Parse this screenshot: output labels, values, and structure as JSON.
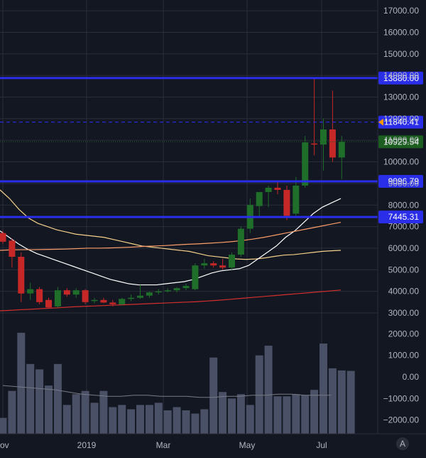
{
  "chart_data": {
    "type": "candlestick",
    "price_axis_ticks": [
      17000,
      16000,
      15000,
      14000,
      13000,
      12000,
      11000,
      10000,
      9000,
      8000,
      7000,
      6000,
      5000,
      4000,
      3000
    ],
    "volume_axis_ticks": [
      2000,
      1000,
      0,
      -1000,
      -2000
    ],
    "price_axis_labels": [
      "17000.00",
      "16000.00",
      "15000.00",
      "14000.00",
      "13000.00",
      "12000.00",
      "11000.00",
      "10000.00",
      "9000.00",
      "8000.00",
      "7000.00",
      "6000.00",
      "5000.00",
      "4000.00",
      "3000.00"
    ],
    "volume_axis_labels": [
      "2000.00",
      "1000.00",
      "0.00",
      "−1000.00",
      "−2000.00"
    ],
    "time_axis_labels": [
      "ov",
      "2019",
      "Mar",
      "May",
      "Jul"
    ],
    "price_ylim": [
      2400,
      17500
    ],
    "volume_ylim": [
      -2700,
      2100
    ],
    "horizontal_levels": [
      {
        "value": 13880,
        "label": "13880.00",
        "color": "#2a2ee8",
        "style": "solid"
      },
      {
        "value": 11840.41,
        "label": "11840.41",
        "color": "#2a2ee8",
        "style": "dashed"
      },
      {
        "value": 9096.79,
        "label": "9096.79",
        "color": "#2a2ee8",
        "style": "solid"
      },
      {
        "value": 7445.31,
        "label": "7445.31",
        "color": "#2a2ee8",
        "style": "solid"
      }
    ],
    "last_price": {
      "value": 10929.54,
      "label": "10929.54",
      "color": "#1b5e20"
    },
    "candles": [
      {
        "open": 6700,
        "high": 6800,
        "low": 6200,
        "close": 6300
      },
      {
        "open": 6350,
        "high": 6450,
        "low": 5100,
        "close": 5600
      },
      {
        "open": 5600,
        "high": 5800,
        "low": 3500,
        "close": 3900
      },
      {
        "open": 3900,
        "high": 4400,
        "low": 3600,
        "close": 4100
      },
      {
        "open": 4100,
        "high": 4200,
        "low": 3400,
        "close": 3500
      },
      {
        "open": 3600,
        "high": 3700,
        "low": 3200,
        "close": 3250
      },
      {
        "open": 3300,
        "high": 4200,
        "low": 3250,
        "close": 4050
      },
      {
        "open": 4050,
        "high": 4150,
        "low": 3750,
        "close": 3850
      },
      {
        "open": 3850,
        "high": 4150,
        "low": 3700,
        "close": 4050
      },
      {
        "open": 4050,
        "high": 4100,
        "low": 3400,
        "close": 3500
      },
      {
        "open": 3550,
        "high": 3700,
        "low": 3450,
        "close": 3600
      },
      {
        "open": 3600,
        "high": 3700,
        "low": 3450,
        "close": 3480
      },
      {
        "open": 3480,
        "high": 3600,
        "low": 3300,
        "close": 3400
      },
      {
        "open": 3400,
        "high": 3700,
        "low": 3350,
        "close": 3650
      },
      {
        "open": 3650,
        "high": 3850,
        "low": 3550,
        "close": 3700
      },
      {
        "open": 3700,
        "high": 4300,
        "low": 3650,
        "close": 3800
      },
      {
        "open": 3800,
        "high": 4000,
        "low": 3700,
        "close": 3950
      },
      {
        "open": 3950,
        "high": 4100,
        "low": 3850,
        "close": 4000
      },
      {
        "open": 4000,
        "high": 4150,
        "low": 3950,
        "close": 4050
      },
      {
        "open": 4050,
        "high": 4200,
        "low": 3950,
        "close": 4150
      },
      {
        "open": 4150,
        "high": 4350,
        "low": 4050,
        "close": 4250
      },
      {
        "open": 4100,
        "high": 5300,
        "low": 4050,
        "close": 5200
      },
      {
        "open": 5200,
        "high": 5500,
        "low": 5050,
        "close": 5300
      },
      {
        "open": 5300,
        "high": 5400,
        "low": 5100,
        "close": 5200
      },
      {
        "open": 5200,
        "high": 5500,
        "low": 5000,
        "close": 5100
      },
      {
        "open": 5100,
        "high": 5800,
        "low": 5000,
        "close": 5700
      },
      {
        "open": 5700,
        "high": 7000,
        "low": 5600,
        "close": 6900
      },
      {
        "open": 6900,
        "high": 8300,
        "low": 6700,
        "close": 8000
      },
      {
        "open": 7950,
        "high": 8600,
        "low": 7400,
        "close": 8600
      },
      {
        "open": 8600,
        "high": 8900,
        "low": 7900,
        "close": 8800
      },
      {
        "open": 8800,
        "high": 9100,
        "low": 8500,
        "close": 8700
      },
      {
        "open": 8700,
        "high": 8900,
        "low": 7300,
        "close": 7500
      },
      {
        "open": 7600,
        "high": 9300,
        "low": 7500,
        "close": 8900
      },
      {
        "open": 8900,
        "high": 11200,
        "low": 8800,
        "close": 10900
      },
      {
        "open": 10850,
        "high": 13900,
        "low": 10300,
        "close": 10800
      },
      {
        "open": 10800,
        "high": 12000,
        "low": 9600,
        "close": 11500
      },
      {
        "open": 11500,
        "high": 13300,
        "low": 10000,
        "close": 10200
      },
      {
        "open": 10200,
        "high": 11200,
        "low": 9200,
        "close": 10929.54
      }
    ],
    "volume": [
      -1900,
      -650,
      2050,
      600,
      350,
      -400,
      600,
      -1300,
      -800,
      -650,
      -1200,
      -650,
      -1400,
      -1300,
      -1500,
      -1300,
      -1300,
      -1200,
      -1550,
      -1400,
      -1550,
      -1700,
      -1500,
      900,
      -700,
      -1000,
      -800,
      -1300,
      1000,
      1450,
      -900,
      -900,
      -800,
      -850,
      -600,
      1550,
      400,
      300,
      280
    ],
    "moving_averages": [
      {
        "color": "#f5d08a",
        "role": "upper-ma",
        "values": [
          8700,
          8300,
          7800,
          7400,
          7150,
          7000,
          6850,
          6750,
          6650,
          6600,
          6550,
          6500,
          6400,
          6300,
          6200,
          6100,
          6050,
          6000,
          5950,
          5900,
          5850,
          5750,
          5650,
          5600,
          5550,
          5500,
          5480,
          5500,
          5550,
          5620,
          5680,
          5700,
          5750,
          5800,
          5850,
          5880,
          5900
        ]
      },
      {
        "color": "#ffffff",
        "role": "fast-ma",
        "values": [
          6800,
          6500,
          6200,
          5950,
          5750,
          5600,
          5450,
          5300,
          5150,
          5000,
          4850,
          4700,
          4550,
          4450,
          4350,
          4300,
          4300,
          4300,
          4350,
          4400,
          4450,
          4550,
          4700,
          4850,
          4950,
          5000,
          5050,
          5200,
          5500,
          5800,
          6100,
          6500,
          6800,
          7200,
          7600,
          7900,
          8100,
          8300
        ]
      },
      {
        "color": "#ff9e6a",
        "role": "slow-ma",
        "values": [
          5900,
          5920,
          5930,
          5930,
          5940,
          5950,
          5960,
          5980,
          6000,
          6000,
          6010,
          6030,
          6050,
          6080,
          6100,
          6120,
          6150,
          6180,
          6200,
          6230,
          6260,
          6300,
          6350,
          6420,
          6500,
          6600,
          6700,
          6800,
          6900,
          7000,
          7100,
          7200
        ]
      },
      {
        "color": "#d32f2f",
        "role": "long-ma",
        "values": [
          3100,
          3120,
          3150,
          3170,
          3200,
          3220,
          3250,
          3280,
          3300,
          3320,
          3340,
          3360,
          3380,
          3400,
          3420,
          3440,
          3460,
          3480,
          3500,
          3520,
          3550,
          3580,
          3620,
          3660,
          3700,
          3740,
          3780,
          3820,
          3860,
          3900,
          3940,
          3980,
          4020,
          4060
        ]
      }
    ],
    "volume_ma": [
      -400,
      -450,
      -500,
      -550,
      -600,
      -700,
      -800,
      -850,
      -900,
      -900,
      -850,
      -850,
      -900,
      -900,
      -900,
      -950,
      -950,
      -900,
      -900,
      -850,
      -850,
      -800,
      -800,
      -850,
      -850,
      -850
    ]
  },
  "colors": {
    "background": "#131722",
    "grid": "#2a2e39",
    "up_candle": "#1f6e2a",
    "down_candle": "#c62828",
    "volume_bar": "#4a5066",
    "level_line": "#2a2ee8",
    "axis_text": "#b2b5be"
  },
  "corner_badge": "A"
}
